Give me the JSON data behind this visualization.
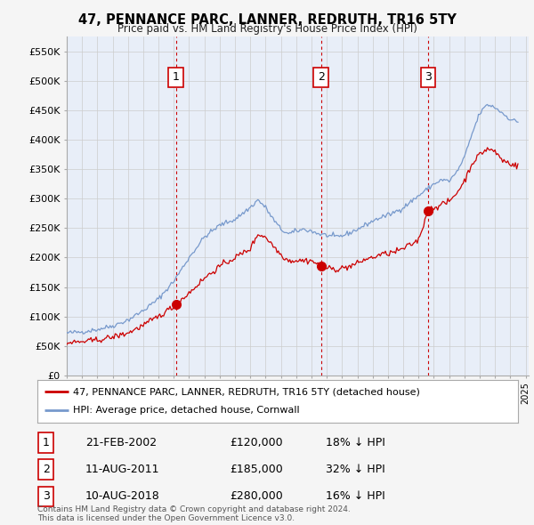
{
  "title": "47, PENNANCE PARC, LANNER, REDRUTH, TR16 5TY",
  "subtitle": "Price paid vs. HM Land Registry's House Price Index (HPI)",
  "ylabel_ticks": [
    "£0",
    "£50K",
    "£100K",
    "£150K",
    "£200K",
    "£250K",
    "£300K",
    "£350K",
    "£400K",
    "£450K",
    "£500K",
    "£550K"
  ],
  "ylabel_values": [
    0,
    50000,
    100000,
    150000,
    200000,
    250000,
    300000,
    350000,
    400000,
    450000,
    500000,
    550000
  ],
  "xlim_start": 1995.0,
  "xlim_end": 2025.2,
  "ylim_min": 0,
  "ylim_max": 575000,
  "bg_color": "#f5f5f5",
  "plot_bg_color": "#e8eef8",
  "grid_color": "#cccccc",
  "sale_color": "#cc0000",
  "hpi_color": "#7799cc",
  "sale_label": "47, PENNANCE PARC, LANNER, REDRUTH, TR16 5TY (detached house)",
  "hpi_label": "HPI: Average price, detached house, Cornwall",
  "transactions": [
    {
      "num": 1,
      "date": "21-FEB-2002",
      "price": 120000,
      "pct": "18%",
      "dir": "↓",
      "year": 2002.13
    },
    {
      "num": 2,
      "date": "11-AUG-2011",
      "price": 185000,
      "pct": "32%",
      "dir": "↓",
      "year": 2011.62
    },
    {
      "num": 3,
      "date": "10-AUG-2018",
      "price": 280000,
      "pct": "16%",
      "dir": "↓",
      "year": 2018.62
    }
  ],
  "footer": "Contains HM Land Registry data © Crown copyright and database right 2024.\nThis data is licensed under the Open Government Licence v3.0.",
  "vline_color": "#cc0000",
  "vline_style": "--"
}
